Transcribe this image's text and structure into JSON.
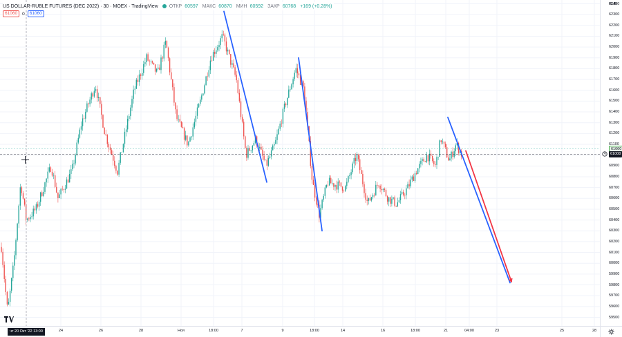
{
  "legend": {
    "symbol": "US DOLLAR-RUBLE FUTURES (DEC 2022) · 30 · MOEX · TradingView",
    "open_label": "ОТКР",
    "open_value": "60597",
    "high_label": "МАКС",
    "high_value": "60870",
    "low_label": "МИН",
    "low_value": "60592",
    "close_label": "ЗАКР",
    "close_value": "60768",
    "change": "+169 (+0.28%)"
  },
  "order": {
    "sell": "61060",
    "spread": "0",
    "buy": "61060"
  },
  "price_axis": {
    "currency": "RUB",
    "ticks": [
      "62400",
      "62300",
      "62200",
      "62100",
      "62000",
      "61900",
      "61800",
      "61700",
      "61600",
      "61500",
      "61400",
      "61300",
      "61200",
      "61100",
      "61000",
      "60900",
      "60800",
      "60700",
      "60600",
      "60500",
      "60400",
      "60300",
      "60200",
      "60100",
      "60000",
      "59900",
      "59800",
      "59700",
      "59600",
      "59500"
    ],
    "label_upper": "61060",
    "label_current": "61008"
  },
  "time_axis": {
    "crosshair_label": "чт 20 Окт '22  13:00",
    "ticks": [
      "24",
      "26",
      "28",
      "Ноя",
      "18:00",
      "7",
      "9",
      "18:00",
      "14",
      "16",
      "18:00",
      "21",
      "04:00",
      "23",
      "25",
      "28"
    ]
  },
  "icons": {
    "logo": "tradingview-logo-icon",
    "settings": "gear-icon",
    "cursor": "crosshair-icon",
    "alert": "alert-clock-icon"
  },
  "colors": {
    "up": "#26a69a",
    "down": "#ef5350",
    "trendline": "#2962ff",
    "projection_red": "#f23645",
    "grid": "#f0f3fa",
    "price_line": "#2a2e39"
  },
  "chart_data": {
    "type": "candlestick",
    "symbol": "US DOLLAR-RUBLE FUTURES (DEC 2022)",
    "interval": "30",
    "exchange": "MOEX",
    "ylim": [
      59450,
      62480
    ],
    "y_label": "RUB",
    "current_price": 61008,
    "ask_line": 61060,
    "x_ticks": [
      "24",
      "26",
      "28",
      "Ноя",
      "18:00",
      "7",
      "9",
      "18:00",
      "14",
      "16",
      "18:00",
      "21",
      "04:00",
      "23",
      "25",
      "28"
    ],
    "close_path": [
      {
        "t": "20 Oct 13:00",
        "y": 60150
      },
      {
        "t": "20 Oct",
        "y": 59550
      },
      {
        "t": "21 Oct",
        "y": 60000
      },
      {
        "t": "21 Oct",
        "y": 60750
      },
      {
        "t": "21 Oct",
        "y": 60400
      },
      {
        "t": "24",
        "y": 60500
      },
      {
        "t": "24",
        "y": 60900
      },
      {
        "t": "24",
        "y": 60600
      },
      {
        "t": "25",
        "y": 60850
      },
      {
        "t": "25",
        "y": 61300
      },
      {
        "t": "25",
        "y": 61650
      },
      {
        "t": "26",
        "y": 61200
      },
      {
        "t": "26",
        "y": 60850
      },
      {
        "t": "27",
        "y": 61100
      },
      {
        "t": "27",
        "y": 61600
      },
      {
        "t": "27",
        "y": 61900
      },
      {
        "t": "28",
        "y": 61750
      },
      {
        "t": "28",
        "y": 62050
      },
      {
        "t": "28",
        "y": 61350
      },
      {
        "t": "Ноя",
        "y": 61100
      },
      {
        "t": "Ноя",
        "y": 61500
      },
      {
        "t": "Ноя 18:00",
        "y": 61900
      },
      {
        "t": "Ноя 18:00",
        "y": 62100
      },
      {
        "t": "7",
        "y": 61700
      },
      {
        "t": "7",
        "y": 61000
      },
      {
        "t": "7",
        "y": 61150
      },
      {
        "t": "8",
        "y": 60900
      },
      {
        "t": "8",
        "y": 61100
      },
      {
        "t": "9",
        "y": 61500
      },
      {
        "t": "9",
        "y": 61800
      },
      {
        "t": "9",
        "y": 61600
      },
      {
        "t": "9 18:00",
        "y": 60750
      },
      {
        "t": "10",
        "y": 60450
      },
      {
        "t": "10",
        "y": 60750
      },
      {
        "t": "14",
        "y": 61000
      },
      {
        "t": "14",
        "y": 60700
      },
      {
        "t": "15",
        "y": 60550
      },
      {
        "t": "15",
        "y": 60750
      },
      {
        "t": "16",
        "y": 60600
      },
      {
        "t": "16",
        "y": 60550
      },
      {
        "t": "17",
        "y": 60700
      },
      {
        "t": "17 18:00",
        "y": 60850
      },
      {
        "t": "18",
        "y": 61000
      },
      {
        "t": "18",
        "y": 60900
      },
      {
        "t": "21",
        "y": 61150
      },
      {
        "t": "21",
        "y": 60950
      },
      {
        "t": "21",
        "y": 61100
      },
      {
        "t": "21",
        "y": 61008
      }
    ],
    "drawings": [
      {
        "type": "trendline",
        "color": "#2962ff",
        "from": {
          "t": "Ноя 18:00",
          "y": 62330
        },
        "to": {
          "t": "8",
          "y": 60750
        }
      },
      {
        "type": "trendline",
        "color": "#2962ff",
        "from": {
          "t": "9",
          "y": 61900
        },
        "to": {
          "t": "14",
          "y": 60300
        }
      },
      {
        "type": "trendline",
        "color": "#2962ff",
        "from": {
          "t": "21",
          "y": 61350
        },
        "to": {
          "t": "23",
          "y": 59820
        }
      },
      {
        "type": "arrow",
        "color": "#f23645",
        "from": {
          "t": "21 04:00",
          "y": 61040
        },
        "to": {
          "t": "23",
          "y": 59830
        }
      }
    ]
  }
}
